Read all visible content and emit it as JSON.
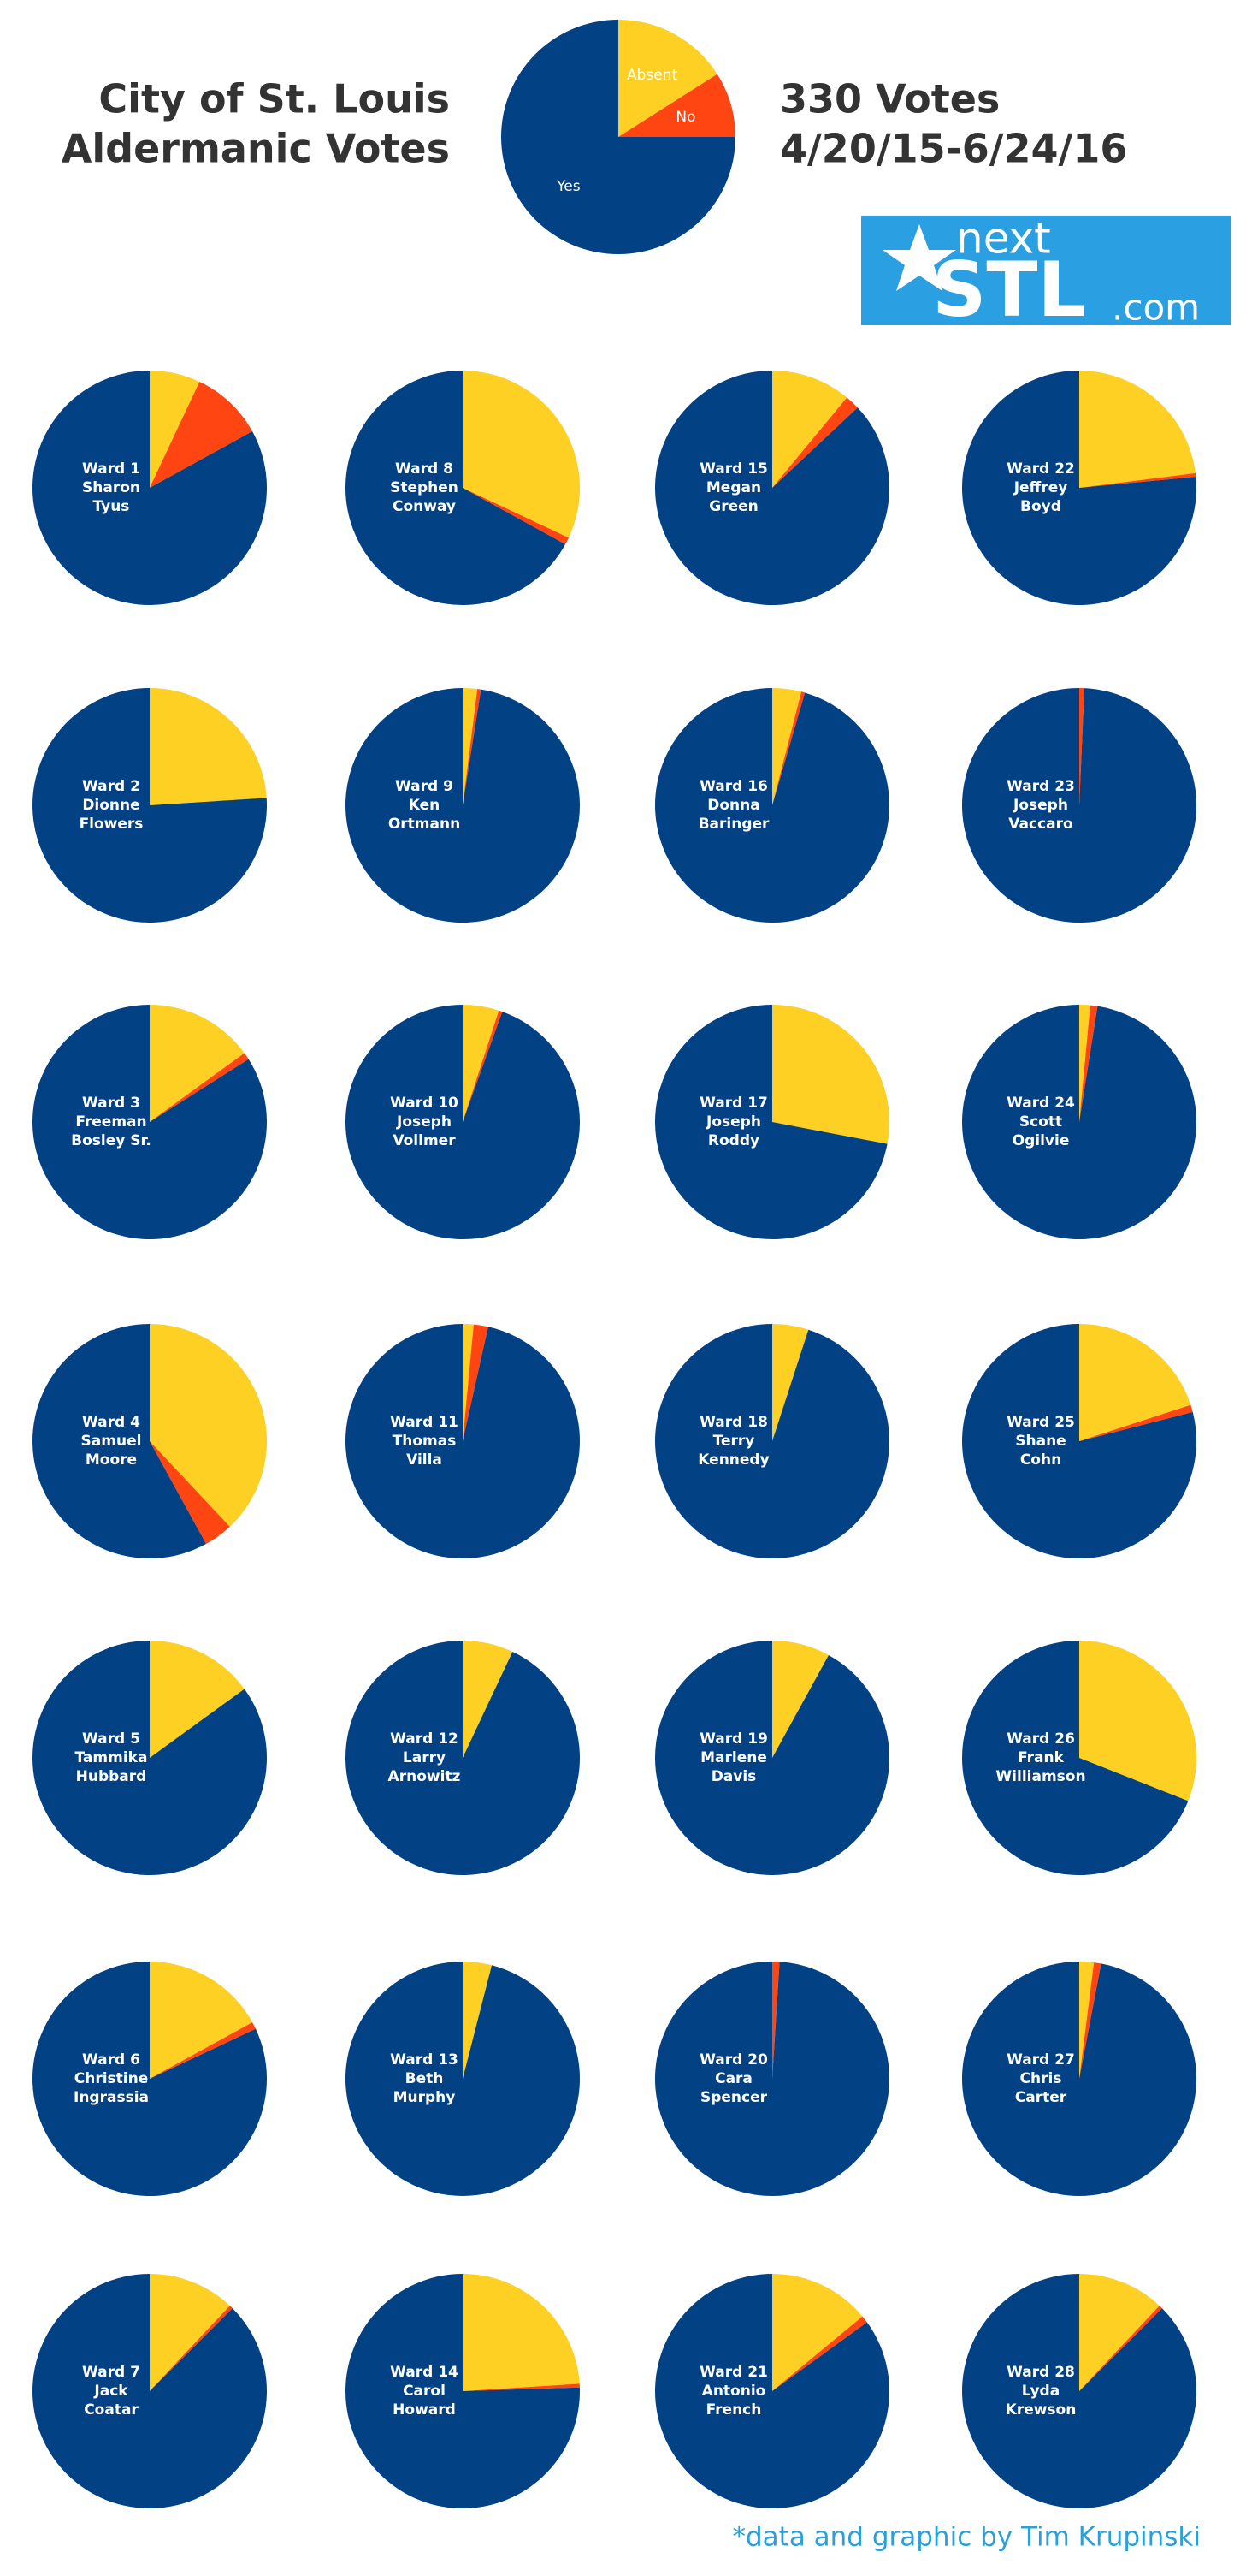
{
  "header": {
    "title_lines": [
      "City of St. Louis",
      "Aldermanic Votes"
    ],
    "votes": "330 Votes",
    "dates": "4/20/15-6/24/16"
  },
  "logo": {
    "top": "next",
    "main": "STL",
    "suffix": ".com"
  },
  "credit": "*data and graphic by Tim Krupinski",
  "chart_data": [
    {
      "type": "pie",
      "categories": [
        "Absent",
        "No",
        "Yes"
      ],
      "colors": [
        "#fdd023",
        "#ff4511",
        "#034185"
      ],
      "values": [
        16,
        9,
        75
      ]
    },
    {
      "type": "pie",
      "label_lines": [
        "Ward 1",
        "Sharon",
        "Tyus"
      ],
      "values": [
        7,
        10,
        83
      ]
    },
    {
      "type": "pie",
      "label_lines": [
        "Ward 2",
        "Dionne",
        "Flowers"
      ],
      "values": [
        24,
        0,
        76
      ]
    },
    {
      "type": "pie",
      "label_lines": [
        "Ward 3",
        "Freeman",
        "Bosley Sr."
      ],
      "values": [
        15,
        1,
        84
      ]
    },
    {
      "type": "pie",
      "label_lines": [
        "Ward 4",
        "Samuel",
        "Moore"
      ],
      "values": [
        38,
        4,
        58
      ]
    },
    {
      "type": "pie",
      "label_lines": [
        "Ward 5",
        "Tammika",
        "Hubbard"
      ],
      "values": [
        15,
        0,
        85
      ]
    },
    {
      "type": "pie",
      "label_lines": [
        "Ward 6",
        "Christine",
        "Ingrassia"
      ],
      "values": [
        17,
        1,
        82
      ]
    },
    {
      "type": "pie",
      "label_lines": [
        "Ward 7",
        "Jack",
        "Coatar"
      ],
      "values": [
        12,
        0.5,
        87.5
      ]
    },
    {
      "type": "pie",
      "label_lines": [
        "Ward 8",
        "Stephen",
        "Conway"
      ],
      "values": [
        32,
        1,
        67
      ]
    },
    {
      "type": "pie",
      "label_lines": [
        "Ward 9",
        "Ken",
        "Ortmann"
      ],
      "values": [
        2,
        0.5,
        97.5
      ]
    },
    {
      "type": "pie",
      "label_lines": [
        "Ward 10",
        "Joseph",
        "Vollmer"
      ],
      "values": [
        5,
        0.5,
        94.5
      ]
    },
    {
      "type": "pie",
      "label_lines": [
        "Ward 11",
        "Thomas",
        "Villa"
      ],
      "values": [
        1.5,
        2,
        96.5
      ]
    },
    {
      "type": "pie",
      "label_lines": [
        "Ward 12",
        "Larry",
        "Arnowitz"
      ],
      "values": [
        7,
        0,
        93
      ]
    },
    {
      "type": "pie",
      "label_lines": [
        "Ward 13",
        "Beth",
        "Murphy"
      ],
      "values": [
        4,
        0,
        96
      ]
    },
    {
      "type": "pie",
      "label_lines": [
        "Ward 14",
        "Carol",
        "Howard"
      ],
      "values": [
        24,
        0.5,
        75.5
      ]
    },
    {
      "type": "pie",
      "label_lines": [
        "Ward 15",
        "Megan",
        "Green"
      ],
      "values": [
        11,
        2,
        87
      ]
    },
    {
      "type": "pie",
      "label_lines": [
        "Ward 16",
        "Donna",
        "Baringer"
      ],
      "values": [
        4,
        0.5,
        95.5
      ]
    },
    {
      "type": "pie",
      "label_lines": [
        "Ward 17",
        "Joseph",
        "Roddy"
      ],
      "values": [
        28,
        0,
        72
      ]
    },
    {
      "type": "pie",
      "label_lines": [
        "Ward 18",
        "Terry",
        "Kennedy"
      ],
      "values": [
        5,
        0,
        95
      ]
    },
    {
      "type": "pie",
      "label_lines": [
        "Ward 19",
        "Marlene",
        "Davis"
      ],
      "values": [
        8,
        0,
        92
      ]
    },
    {
      "type": "pie",
      "label_lines": [
        "Ward 20",
        "Cara",
        "Spencer"
      ],
      "values": [
        0,
        1,
        99
      ]
    },
    {
      "type": "pie",
      "label_lines": [
        "Ward 21",
        "Antonio",
        "French"
      ],
      "values": [
        14,
        1,
        85
      ]
    },
    {
      "type": "pie",
      "label_lines": [
        "Ward 22",
        "Jeffrey",
        "Boyd"
      ],
      "values": [
        23,
        0.5,
        76.5
      ]
    },
    {
      "type": "pie",
      "label_lines": [
        "Ward 23",
        "Joseph",
        "Vaccaro"
      ],
      "values": [
        0,
        0.7,
        99.3
      ]
    },
    {
      "type": "pie",
      "label_lines": [
        "Ward 24",
        "Scott",
        "Ogilvie"
      ],
      "values": [
        1.5,
        1,
        97.5
      ]
    },
    {
      "type": "pie",
      "label_lines": [
        "Ward 25",
        "Shane",
        "Cohn"
      ],
      "values": [
        20,
        1,
        79
      ]
    },
    {
      "type": "pie",
      "label_lines": [
        "Ward 26",
        "Frank",
        "Williamson"
      ],
      "values": [
        31,
        0,
        69
      ]
    },
    {
      "type": "pie",
      "label_lines": [
        "Ward 27",
        "Chris",
        "Carter"
      ],
      "values": [
        2,
        1,
        97
      ]
    },
    {
      "type": "pie",
      "label_lines": [
        "Ward 28",
        "Lyda",
        "Krewson"
      ],
      "values": [
        12,
        0.5,
        87.5
      ]
    }
  ]
}
